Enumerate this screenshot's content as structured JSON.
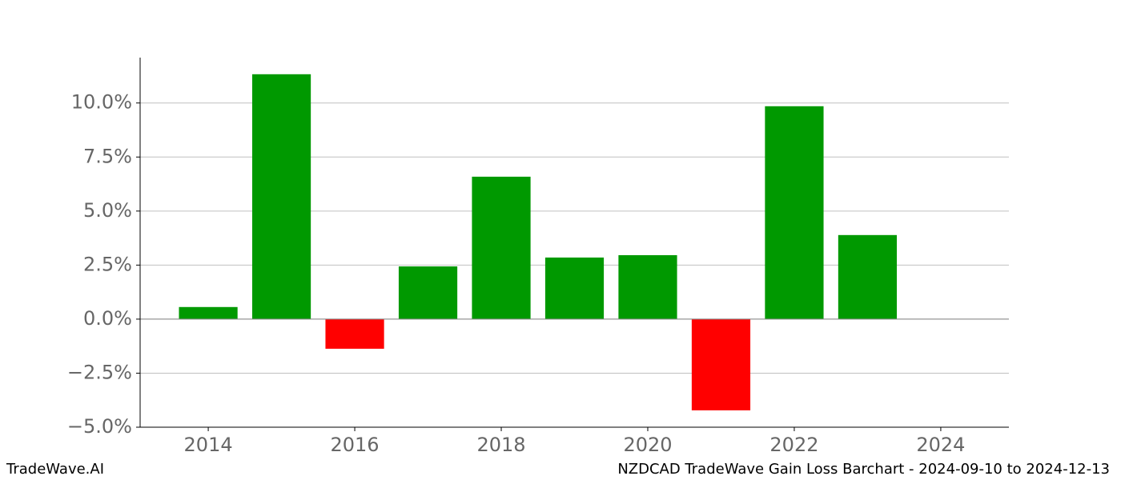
{
  "chart_data": {
    "type": "bar",
    "title": "NZDCAD TradeWave Gain Loss Barchart - 2024-09-10 to 2024-12-13",
    "watermark": "TradeWave.AI",
    "x": [
      2014,
      2015,
      2016,
      2017,
      2018,
      2019,
      2020,
      2021,
      2022,
      2023
    ],
    "values": [
      0.56,
      11.33,
      -1.37,
      2.44,
      6.59,
      2.85,
      2.96,
      -4.22,
      9.85,
      3.89
    ],
    "positive_color": "#009900",
    "negative_color": "#ff0000",
    "bar_width": 0.8,
    "xlim": [
      2013.07,
      2024.93
    ],
    "xticks": [
      2014,
      2016,
      2018,
      2020,
      2022,
      2024
    ],
    "ylim": [
      -5,
      12.1
    ],
    "yticks": [
      {
        "value": -5,
        "label": "−5.0%"
      },
      {
        "value": -2.5,
        "label": "−2.5%"
      },
      {
        "value": 0,
        "label": "0.0%"
      },
      {
        "value": 2.5,
        "label": "2.5%"
      },
      {
        "value": 5,
        "label": "5.0%"
      },
      {
        "value": 7.5,
        "label": "7.5%"
      },
      {
        "value": 10,
        "label": "10.0%"
      }
    ],
    "grid": true
  }
}
